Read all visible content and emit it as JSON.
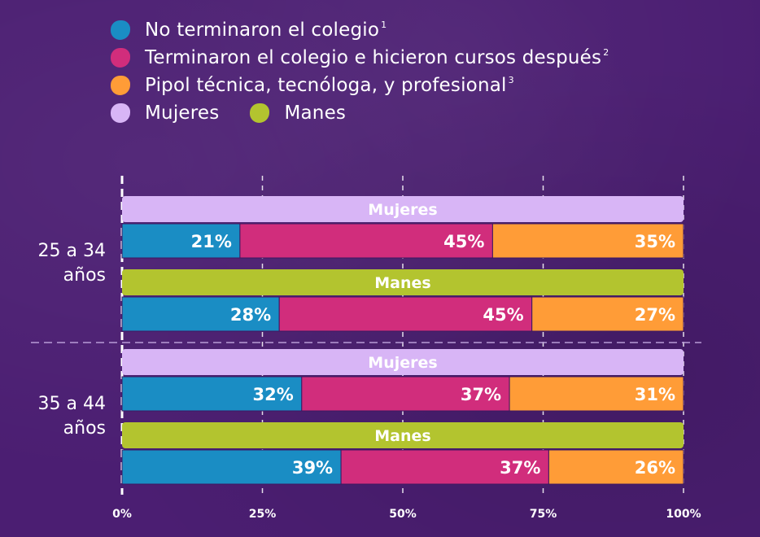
{
  "legend": {
    "items": [
      {
        "label": "No terminaron el colegio",
        "note": "1",
        "color": "#1a8dc4"
      },
      {
        "label": "Terminaron el colegio e hicieron cursos después",
        "note": "2",
        "color": "#d12d7c"
      },
      {
        "label": "Pipol técnica, tecnóloga, y profesional",
        "note": "3",
        "color": "#ff9c37"
      },
      {
        "label": "Mujeres",
        "note": "",
        "color": "#d8b5f6"
      },
      {
        "label": "Manes",
        "note": "",
        "color": "#b3c42f"
      }
    ]
  },
  "chart_data": {
    "type": "bar",
    "orientation": "horizontal",
    "stacked": true,
    "xlim": [
      0,
      100
    ],
    "x_ticks": [
      "0%",
      "25%",
      "50%",
      "75%",
      "100%"
    ],
    "series_names": [
      "No terminaron el colegio",
      "Terminaron el colegio e hicieron cursos después",
      "Pipol técnica, tecnóloga, y profesional"
    ],
    "series_colors": [
      "#1a8dc4",
      "#d12d7c",
      "#ff9c37"
    ],
    "groups": [
      {
        "label_lines": [
          "25 a 34",
          "años"
        ],
        "bars": [
          {
            "name": "Mujeres",
            "color": "#d8b5f6",
            "values": [
              21,
              45,
              35
            ],
            "labels": [
              "21%",
              "45%",
              "35%"
            ]
          },
          {
            "name": "Manes",
            "color": "#b3c42f",
            "values": [
              28,
              45,
              27
            ],
            "labels": [
              "28%",
              "45%",
              "27%"
            ]
          }
        ]
      },
      {
        "label_lines": [
          "35 a 44",
          "años"
        ],
        "bars": [
          {
            "name": "Mujeres",
            "color": "#d8b5f6",
            "values": [
              32,
              37,
              31
            ],
            "labels": [
              "32%",
              "37%",
              "31%"
            ]
          },
          {
            "name": "Manes",
            "color": "#b3c42f",
            "values": [
              39,
              37,
              26
            ],
            "labels": [
              "39%",
              "37%",
              "26%"
            ]
          }
        ]
      }
    ]
  }
}
